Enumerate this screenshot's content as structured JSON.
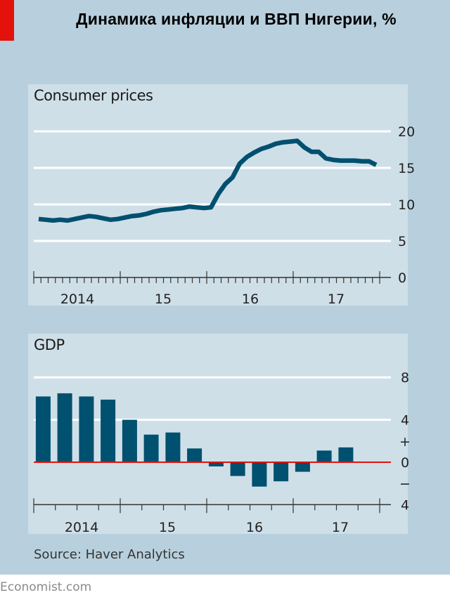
{
  "title": "Динамика инфляции и ВВП Нигерии, %",
  "source": "Source: Haver Analytics",
  "brand": "Economist.com",
  "colors": {
    "series": "#00506f",
    "gridline": "#ffffff",
    "zero_line": "#e3120b",
    "axis": "#333333",
    "background": "#b8d0dd",
    "panel": "#cfdfe8",
    "accent": "#e3120b"
  },
  "chart_data": [
    {
      "type": "line",
      "title": "Consumer prices",
      "xlabel": "",
      "ylabel": "",
      "x_tick_labels": [
        "2014",
        "15",
        "16",
        "17"
      ],
      "y_ticks": [
        0,
        5,
        10,
        15,
        20
      ],
      "ylim": [
        0,
        20
      ],
      "xlim_months": [
        0,
        48
      ],
      "grid": true,
      "y_axis_side": "right",
      "series": [
        {
          "name": "Consumer prices",
          "frequency": "monthly",
          "start": "2014-01",
          "values": [
            8.0,
            7.9,
            7.8,
            7.9,
            7.8,
            8.0,
            8.2,
            8.4,
            8.3,
            8.1,
            7.9,
            8.0,
            8.2,
            8.4,
            8.5,
            8.7,
            9.0,
            9.2,
            9.3,
            9.4,
            9.5,
            9.7,
            9.6,
            9.5,
            9.6,
            11.4,
            12.8,
            13.7,
            15.6,
            16.5,
            17.1,
            17.6,
            17.9,
            18.3,
            18.5,
            18.6,
            18.7,
            17.8,
            17.2,
            17.2,
            16.3,
            16.1,
            16.0,
            16.0,
            16.0,
            15.9,
            15.9,
            15.4
          ]
        }
      ]
    },
    {
      "type": "bar",
      "title": "GDP",
      "xlabel": "",
      "ylabel": "",
      "x_tick_labels": [
        "2014",
        "15",
        "16",
        "17"
      ],
      "y_tick_labels": [
        "8",
        "4",
        "+",
        "0",
        "−",
        "4"
      ],
      "y_ticks": [
        8,
        4,
        0,
        -4
      ],
      "ylim": [
        -4,
        8
      ],
      "grid": true,
      "y_axis_side": "right",
      "categories": [
        "2014 Q1",
        "2014 Q2",
        "2014 Q3",
        "2014 Q4",
        "2015 Q1",
        "2015 Q2",
        "2015 Q3",
        "2015 Q4",
        "2016 Q1",
        "2016 Q2",
        "2016 Q3",
        "2016 Q4",
        "2017 Q1",
        "2017 Q2",
        "2017 Q3"
      ],
      "values": [
        6.2,
        6.5,
        6.2,
        5.9,
        4.0,
        2.6,
        2.8,
        1.3,
        -0.4,
        -1.3,
        -2.3,
        -1.8,
        -0.9,
        1.1,
        1.4
      ]
    }
  ]
}
